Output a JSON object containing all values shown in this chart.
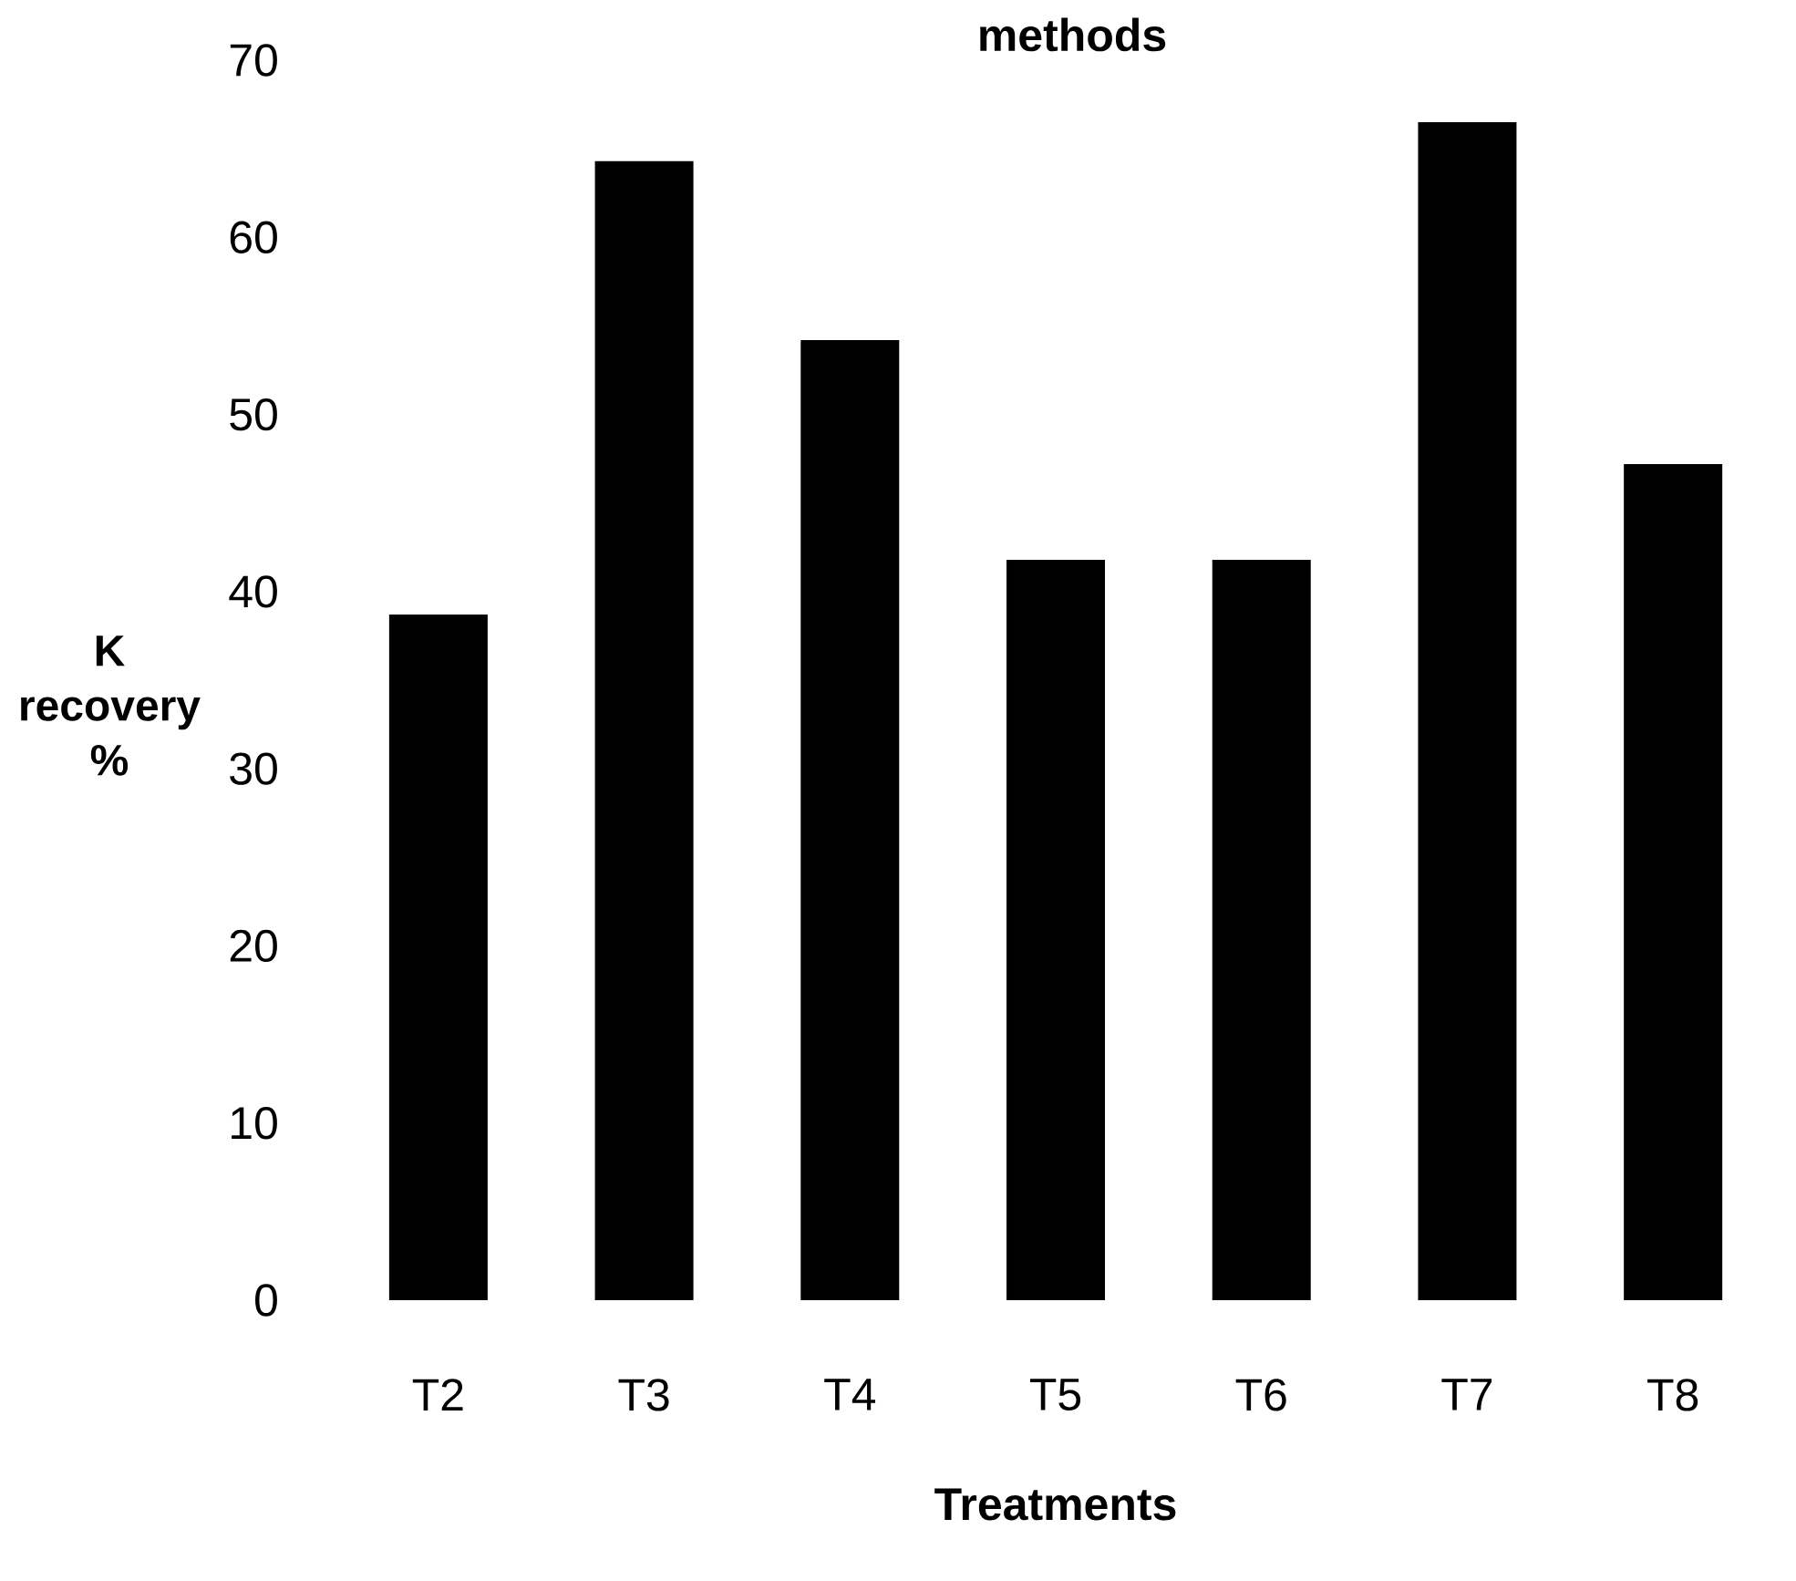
{
  "chart_data": {
    "type": "bar",
    "title": "methods",
    "xlabel": "Treatments",
    "ylabel": "K recovery %",
    "categories": [
      "T2",
      "T3",
      "T4",
      "T5",
      "T6",
      "T7",
      "T8"
    ],
    "values": [
      38.7,
      64.3,
      54.2,
      41.8,
      41.8,
      66.5,
      47.2
    ],
    "color": "#000000",
    "ylim": [
      0,
      70
    ],
    "yticks": [
      0,
      10,
      20,
      30,
      40,
      50,
      60,
      70
    ],
    "grid": false
  }
}
